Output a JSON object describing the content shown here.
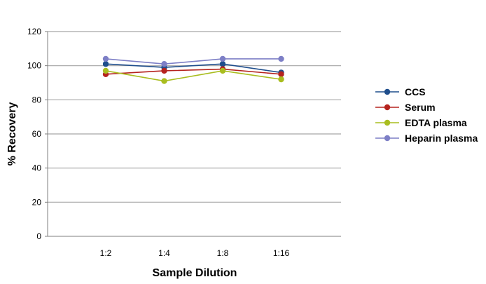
{
  "chart_data": {
    "type": "line",
    "categories": [
      "1:2",
      "1:4",
      "1:8",
      "1:16"
    ],
    "series": [
      {
        "name": "CCS",
        "color": "#1f4e8c",
        "values": [
          101,
          99,
          101,
          96
        ]
      },
      {
        "name": "Serum",
        "color": "#b5231e",
        "values": [
          95,
          97,
          98,
          95
        ]
      },
      {
        "name": "EDTA plasma",
        "color": "#a9bd1f",
        "values": [
          97,
          91,
          97,
          92
        ]
      },
      {
        "name": "Heparin plasma",
        "color": "#7d7fc6",
        "values": [
          104,
          101,
          104,
          104
        ]
      }
    ],
    "xlabel": "Sample Dilution",
    "ylabel": "% Recovery",
    "ylim": [
      0,
      120
    ],
    "yticks": [
      0,
      20,
      40,
      60,
      80,
      100,
      120
    ],
    "grid": true,
    "legend": "right"
  }
}
